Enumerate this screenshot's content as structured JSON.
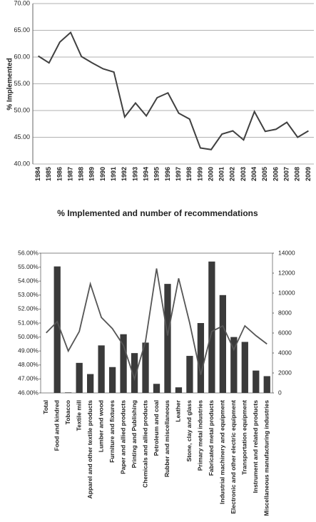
{
  "chart_data": [
    {
      "type": "line",
      "ylabel": "% Implemented",
      "x": [
        "1984",
        "1985",
        "1986",
        "1987",
        "1988",
        "1989",
        "1990",
        "1991",
        "1992",
        "1993",
        "1994",
        "1995",
        "1996",
        "1997",
        "1998",
        "1999",
        "2000",
        "2001",
        "2002",
        "2003",
        "2004",
        "2005",
        "2006",
        "2007",
        "2008",
        "2009"
      ],
      "values": [
        60.2,
        58.9,
        62.8,
        64.6,
        60.1,
        58.9,
        57.8,
        57.2,
        48.8,
        51.4,
        49.0,
        52.4,
        53.3,
        49.5,
        48.4,
        43.0,
        42.7,
        45.6,
        46.2,
        44.5,
        49.8,
        46.1,
        46.5,
        47.8,
        45.0,
        46.2
      ],
      "color": "#404040",
      "ylim": [
        40,
        70
      ],
      "yticks": [
        {
          "value": 40,
          "label": "40.00"
        },
        {
          "value": 45,
          "label": "45.00"
        },
        {
          "value": 50,
          "label": "50.00"
        },
        {
          "value": 55,
          "label": "55.00"
        },
        {
          "value": 60,
          "label": "60.00"
        },
        {
          "value": 65,
          "label": "65.00"
        },
        {
          "value": 70,
          "label": "70.00"
        }
      ],
      "grid": true
    },
    {
      "type": "bar",
      "title": "% Implemented and number of recommendations",
      "categories": [
        "Total",
        "Food and kindred",
        "Tobacco",
        "Textile mill",
        "Apparel and other textile products",
        "Lumber and wood",
        "Furniture and fixtures",
        "Paper and allied products",
        "Printing and Publishing",
        "Chemicals and allied products",
        "Petroleum and coal",
        "Rubber and miscellaneous",
        "Leather",
        "Stone, clay and glass",
        "Primary metal industries",
        "Fabricated metal products",
        "Industrial machinery and equipment",
        "Electronic and other electric equipment",
        "Transportation equipment",
        "Instrument and related products",
        "Miscellaneous manufacturing industries"
      ],
      "series": [
        {
          "type": "bar",
          "axis": "y2",
          "color": "#3a3a3a",
          "values": [
            null,
            12670,
            50,
            3010,
            1890,
            4760,
            2590,
            5880,
            3990,
            5040,
            910,
            10920,
            560,
            3710,
            7000,
            13160,
            9800,
            5600,
            5110,
            2240,
            1680
          ]
        },
        {
          "type": "line",
          "color": "#555555",
          "values": [
            50.3,
            51.1,
            49.0,
            50.4,
            53.8,
            51.4,
            50.6,
            49.4,
            47.0,
            49.7,
            54.9,
            50.1,
            54.2,
            51.0,
            47.3,
            50.4,
            50.8,
            49.1,
            50.8,
            50.1,
            49.5
          ]
        }
      ],
      "ylim": [
        46,
        56
      ],
      "yticks": [
        {
          "value": 46,
          "label": "46.00%"
        },
        {
          "value": 47,
          "label": "47.00%"
        },
        {
          "value": 48,
          "label": "48.00%"
        },
        {
          "value": 49,
          "label": "49.00%"
        },
        {
          "value": 50,
          "label": "50.00%"
        },
        {
          "value": 51,
          "label": "51.00%"
        },
        {
          "value": 52,
          "label": "52.00%"
        },
        {
          "value": 53,
          "label": "53.00%"
        },
        {
          "value": 54,
          "label": "54.00%"
        },
        {
          "value": 55,
          "label": "55.00%"
        },
        {
          "value": 56,
          "label": "56.00%"
        }
      ],
      "y2lim": [
        0,
        14000
      ],
      "y2ticks": [
        0,
        2000,
        4000,
        6000,
        8000,
        10000,
        12000,
        14000
      ]
    }
  ]
}
